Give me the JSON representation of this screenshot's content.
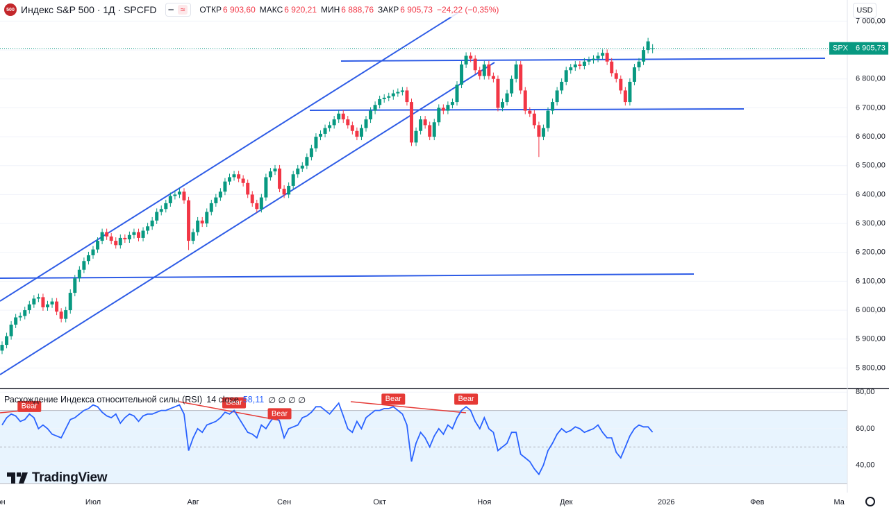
{
  "header": {
    "logo": "500",
    "title": "Индекс S&P 500 · 1Д · SPCFD",
    "toggle": "≈",
    "ohlc": [
      {
        "label": "ОТКР",
        "value": "6 903,60"
      },
      {
        "label": "МАКС",
        "value": "6 920,21"
      },
      {
        "label": "МИН",
        "value": "6 888,76"
      },
      {
        "label": "ЗАКР",
        "value": "6 905,73"
      }
    ],
    "change": "−24,22 (−0,35%)",
    "currency": "USD"
  },
  "watermark": "TradingView",
  "chart_data": [
    {
      "type": "candlestick",
      "up_color": "#089981",
      "down_color": "#f23645",
      "symbol_label": "SPX",
      "last_price": 6905.73,
      "last_price_label": "6 905,73",
      "ylim": [
        5729,
        7073
      ],
      "yticks": [
        {
          "value": 5800,
          "label": "5 800,00"
        },
        {
          "value": 5900,
          "label": "5 900,00"
        },
        {
          "value": 6000,
          "label": "6 000,00"
        },
        {
          "value": 6100,
          "label": "6 100,00"
        },
        {
          "value": 6200,
          "label": "6 200,00"
        },
        {
          "value": 6300,
          "label": "6 300,00"
        },
        {
          "value": 6400,
          "label": "6 400,00"
        },
        {
          "value": 6500,
          "label": "6 500,00"
        },
        {
          "value": 6600,
          "label": "6 600,00"
        },
        {
          "value": 6700,
          "label": "6 700,00"
        },
        {
          "value": 6800,
          "label": "6 800,00"
        },
        {
          "value": 6900,
          "label": "6 900,00"
        },
        {
          "value": 7000,
          "label": "7 000,00"
        }
      ],
      "xticks": [
        {
          "value": -1,
          "label": "Июн"
        },
        {
          "value": 20,
          "label": "Июл"
        },
        {
          "value": 42,
          "label": "Авг"
        },
        {
          "value": 62,
          "label": "Сен"
        },
        {
          "value": 83,
          "label": "Окт"
        },
        {
          "value": 106,
          "label": "Ноя"
        },
        {
          "value": 124,
          "label": "Дек"
        },
        {
          "value": 146,
          "label": "2026"
        },
        {
          "value": 166,
          "label": "Фев"
        },
        {
          "value": 184,
          "label": "Ма"
        }
      ],
      "open": [
        5860,
        5880,
        5910,
        5950,
        5975,
        5980,
        6000,
        6020,
        6040,
        6045,
        6010,
        6020,
        6030,
        5995,
        5970,
        6000,
        6060,
        6110,
        6140,
        6170,
        6190,
        6210,
        6240,
        6270,
        6255,
        6240,
        6225,
        6250,
        6245,
        6260,
        6270,
        6250,
        6275,
        6290,
        6310,
        6340,
        6350,
        6370,
        6395,
        6400,
        6410,
        6380,
        6240,
        6270,
        6310,
        6300,
        6340,
        6370,
        6390,
        6410,
        6445,
        6460,
        6470,
        6455,
        6440,
        6400,
        6370,
        6350,
        6390,
        6460,
        6480,
        6490,
        6420,
        6400,
        6430,
        6470,
        6490,
        6500,
        6530,
        6560,
        6600,
        6610,
        6630,
        6640,
        6660,
        6680,
        6660,
        6640,
        6620,
        6600,
        6630,
        6660,
        6690,
        6710,
        6730,
        6735,
        6740,
        6750,
        6755,
        6760,
        6720,
        6580,
        6620,
        6660,
        6640,
        6600,
        6650,
        6700,
        6690,
        6710,
        6720,
        6780,
        6850,
        6880,
        6870,
        6830,
        6810,
        6850,
        6810,
        6800,
        6700,
        6720,
        6750,
        6800,
        6850,
        6760,
        6690,
        6680,
        6640,
        6600,
        6630,
        6690,
        6720,
        6760,
        6790,
        6830,
        6840,
        6850,
        6845,
        6860,
        6865,
        6870,
        6880,
        6890,
        6860,
        6820,
        6800,
        6760,
        6720,
        6790,
        6840,
        6860,
        6900,
        6903.6
      ],
      "high": [
        5892,
        5922,
        5962,
        5987,
        5992,
        6012,
        6032,
        6052,
        6057,
        6057,
        6032,
        6042,
        6042,
        6007,
        6012,
        6072,
        6122,
        6152,
        6182,
        6202,
        6222,
        6252,
        6282,
        6282,
        6267,
        6252,
        6262,
        6262,
        6272,
        6282,
        6282,
        6287,
        6302,
        6322,
        6352,
        6362,
        6382,
        6407,
        6412,
        6422,
        6422,
        6392,
        6282,
        6322,
        6322,
        6352,
        6382,
        6402,
        6422,
        6457,
        6472,
        6482,
        6482,
        6467,
        6452,
        6412,
        6382,
        6402,
        6472,
        6492,
        6502,
        6502,
        6432,
        6442,
        6482,
        6502,
        6512,
        6542,
        6572,
        6612,
        6622,
        6642,
        6652,
        6672,
        6692,
        6692,
        6672,
        6652,
        6632,
        6642,
        6672,
        6702,
        6722,
        6742,
        6747,
        6752,
        6762,
        6767,
        6772,
        6772,
        6732,
        6632,
        6672,
        6672,
        6652,
        6662,
        6712,
        6712,
        6722,
        6732,
        6792,
        6862,
        6892,
        6892,
        6882,
        6842,
        6862,
        6862,
        6822,
        6812,
        6732,
        6762,
        6812,
        6862,
        6862,
        6772,
        6702,
        6692,
        6652,
        6642,
        6702,
        6732,
        6772,
        6802,
        6842,
        6852,
        6862,
        6862,
        6872,
        6877,
        6882,
        6892,
        6902,
        6902,
        6872,
        6832,
        6812,
        6772,
        6802,
        6852,
        6872,
        6912,
        6942,
        6920.21
      ],
      "low": [
        5848,
        5868,
        5898,
        5938,
        5963,
        5968,
        5988,
        6008,
        6028,
        5998,
        5998,
        6008,
        5983,
        5958,
        5958,
        5988,
        6048,
        6098,
        6128,
        6158,
        6178,
        6198,
        6228,
        6243,
        6228,
        6213,
        6213,
        6233,
        6233,
        6248,
        6238,
        6238,
        6263,
        6278,
        6298,
        6328,
        6338,
        6358,
        6383,
        6388,
        6368,
        6208,
        6228,
        6258,
        6288,
        6288,
        6328,
        6358,
        6378,
        6398,
        6433,
        6448,
        6443,
        6428,
        6388,
        6358,
        6338,
        6338,
        6378,
        6448,
        6468,
        6408,
        6388,
        6388,
        6418,
        6458,
        6478,
        6488,
        6518,
        6548,
        6588,
        6598,
        6618,
        6628,
        6648,
        6648,
        6628,
        6608,
        6588,
        6588,
        6618,
        6648,
        6678,
        6698,
        6718,
        6723,
        6728,
        6738,
        6743,
        6708,
        6568,
        6568,
        6608,
        6628,
        6588,
        6588,
        6638,
        6678,
        6678,
        6698,
        6708,
        6768,
        6838,
        6858,
        6818,
        6798,
        6798,
        6798,
        6788,
        6688,
        6688,
        6708,
        6738,
        6788,
        6748,
        6678,
        6668,
        6628,
        6530,
        6588,
        6618,
        6678,
        6708,
        6748,
        6778,
        6818,
        6828,
        6833,
        6833,
        6848,
        6853,
        6858,
        6868,
        6848,
        6808,
        6788,
        6748,
        6708,
        6708,
        6778,
        6828,
        6848,
        6888,
        6888.76
      ],
      "close": [
        5880,
        5910,
        5950,
        5975,
        5980,
        6000,
        6020,
        6040,
        6045,
        6010,
        6020,
        6030,
        5995,
        5970,
        6000,
        6060,
        6110,
        6140,
        6170,
        6190,
        6210,
        6240,
        6270,
        6255,
        6240,
        6225,
        6250,
        6245,
        6260,
        6270,
        6250,
        6275,
        6290,
        6310,
        6340,
        6350,
        6370,
        6395,
        6400,
        6410,
        6380,
        6240,
        6270,
        6310,
        6300,
        6340,
        6370,
        6390,
        6410,
        6445,
        6460,
        6470,
        6455,
        6440,
        6400,
        6370,
        6350,
        6390,
        6460,
        6480,
        6490,
        6420,
        6400,
        6430,
        6470,
        6490,
        6500,
        6530,
        6560,
        6600,
        6610,
        6630,
        6640,
        6660,
        6680,
        6660,
        6640,
        6620,
        6600,
        6630,
        6660,
        6690,
        6710,
        6730,
        6735,
        6740,
        6750,
        6755,
        6760,
        6720,
        6580,
        6620,
        6660,
        6640,
        6600,
        6650,
        6700,
        6690,
        6710,
        6720,
        6780,
        6850,
        6880,
        6870,
        6830,
        6810,
        6850,
        6810,
        6800,
        6700,
        6720,
        6750,
        6800,
        6850,
        6760,
        6690,
        6680,
        6640,
        6600,
        6630,
        6690,
        6720,
        6760,
        6790,
        6830,
        6840,
        6850,
        6845,
        6860,
        6865,
        6870,
        6880,
        6890,
        6860,
        6820,
        6800,
        6760,
        6720,
        6790,
        6840,
        6860,
        6900,
        6929.95,
        6905.73
      ]
    },
    {
      "type": "line",
      "title": "Расхождение Индекса относительной силы (RSI)",
      "params": "14 close",
      "value_label": "58,11",
      "extras": "∅ ∅ ∅ ∅",
      "color": "#2962ff",
      "levels": [
        70,
        50,
        30
      ],
      "band_color": "#2196f3",
      "ylim": [
        25,
        82
      ],
      "yticks": [
        {
          "value": 80,
          "label": "80,00"
        },
        {
          "value": 60,
          "label": "60,00"
        },
        {
          "value": 40,
          "label": "40,00"
        }
      ],
      "annotations": [
        {
          "text": "Bear",
          "index": 6
        },
        {
          "text": "Bear",
          "index": 51
        },
        {
          "text": "Bear",
          "index": 61
        },
        {
          "text": "Bear",
          "index": 86
        },
        {
          "text": "Bear",
          "index": 102
        }
      ],
      "values": [
        62,
        66,
        68,
        67,
        64,
        65,
        68,
        66,
        60,
        62,
        60,
        57,
        56,
        55,
        60,
        65,
        66,
        68,
        70,
        71,
        73,
        72,
        69,
        67,
        66,
        68,
        63,
        66,
        68,
        67,
        64,
        67,
        68,
        68,
        69,
        70,
        70,
        71,
        72,
        73,
        68,
        48,
        55,
        60,
        58,
        62,
        63,
        64,
        66,
        69,
        68,
        70,
        66,
        62,
        58,
        57,
        55,
        62,
        60,
        64,
        67,
        64,
        55,
        60,
        61,
        62,
        66,
        67,
        69,
        72,
        72,
        70,
        68,
        71,
        74,
        67,
        60,
        58,
        64,
        60,
        66,
        68,
        70,
        70,
        71,
        71,
        72,
        70,
        68,
        62,
        42,
        52,
        58,
        55,
        50,
        56,
        60,
        57,
        62,
        60,
        66,
        70,
        72,
        70,
        64,
        60,
        66,
        60,
        58,
        48,
        50,
        52,
        58,
        58,
        46,
        44,
        42,
        38,
        35,
        40,
        48,
        52,
        57,
        60,
        58,
        59,
        61,
        60,
        58,
        59,
        60,
        62,
        58,
        55,
        55,
        47,
        44,
        50,
        56,
        60,
        62,
        61,
        61,
        58.11
      ]
    }
  ]
}
